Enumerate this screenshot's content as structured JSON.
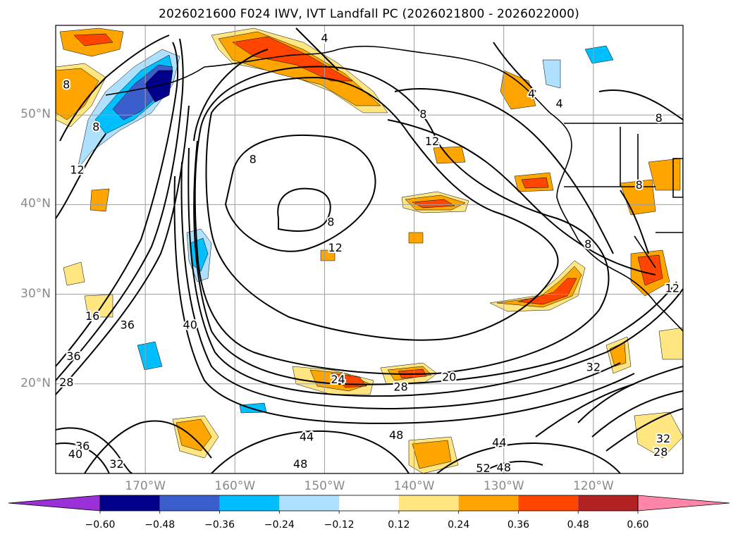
{
  "title": "2026021600 F024 IWV, IVT Landfall PC (2026021800 - 2026022000)",
  "map": {
    "lat_labels": [
      "50°N",
      "40°N",
      "30°N",
      "20°N"
    ],
    "lat_values": [
      50,
      40,
      30,
      20
    ],
    "lon_labels": [
      "170°W",
      "160°W",
      "150°W",
      "140°W",
      "130°W",
      "120°W"
    ],
    "lon_values": [
      -170,
      -160,
      -150,
      -140,
      -130,
      -120
    ],
    "extent": {
      "lon_min": -180,
      "lon_max": -110,
      "lat_min": 10,
      "lat_max": 60
    },
    "contour_labels": [
      {
        "text": "8",
        "lon": -178.8,
        "lat": 53.3
      },
      {
        "text": "8",
        "lon": -175.5,
        "lat": 48.6
      },
      {
        "text": "12",
        "lon": -177.6,
        "lat": 43.8
      },
      {
        "text": "16",
        "lon": -175.9,
        "lat": 27.5
      },
      {
        "text": "36",
        "lon": -178.0,
        "lat": 23.0
      },
      {
        "text": "28",
        "lon": -178.8,
        "lat": 20.1
      },
      {
        "text": "36",
        "lon": -172.0,
        "lat": 26.5
      },
      {
        "text": "40",
        "lon": -165.0,
        "lat": 26.5
      },
      {
        "text": "8",
        "lon": -158.0,
        "lat": 45.0
      },
      {
        "text": "8",
        "lon": -149.3,
        "lat": 38.0
      },
      {
        "text": "12",
        "lon": -148.8,
        "lat": 35.1
      },
      {
        "text": "12",
        "lon": -138.0,
        "lat": 47.0
      },
      {
        "text": "8",
        "lon": -139.0,
        "lat": 50.0
      },
      {
        "text": "4",
        "lon": -150.0,
        "lat": 58.5
      },
      {
        "text": "4",
        "lon": -126.9,
        "lat": 52.3
      },
      {
        "text": "4",
        "lon": -123.8,
        "lat": 51.2
      },
      {
        "text": "8",
        "lon": -112.7,
        "lat": 49.6
      },
      {
        "text": "8",
        "lon": -114.9,
        "lat": 42.1
      },
      {
        "text": "8",
        "lon": -120.6,
        "lat": 35.5
      },
      {
        "text": "12",
        "lon": -111.2,
        "lat": 30.6
      },
      {
        "text": "24",
        "lon": -148.5,
        "lat": 20.4
      },
      {
        "text": "28",
        "lon": -141.5,
        "lat": 19.6
      },
      {
        "text": "20",
        "lon": -136.1,
        "lat": 20.7
      },
      {
        "text": "32",
        "lon": -120.0,
        "lat": 21.8
      },
      {
        "text": "44",
        "lon": -152.0,
        "lat": 14.0
      },
      {
        "text": "48",
        "lon": -142.0,
        "lat": 14.2
      },
      {
        "text": "44",
        "lon": -130.5,
        "lat": 13.4
      },
      {
        "text": "36",
        "lon": -177.0,
        "lat": 13.0
      },
      {
        "text": "40",
        "lon": -177.8,
        "lat": 12.1
      },
      {
        "text": "32",
        "lon": -173.2,
        "lat": 11.0
      },
      {
        "text": "48",
        "lon": -152.7,
        "lat": 11.0
      },
      {
        "text": "52",
        "lon": -132.3,
        "lat": 10.5
      },
      {
        "text": "48",
        "lon": -130.0,
        "lat": 10.6
      },
      {
        "text": "28",
        "lon": -112.5,
        "lat": 12.3
      },
      {
        "text": "32",
        "lon": -112.2,
        "lat": 13.8
      }
    ]
  },
  "colorbar": {
    "ticks": [
      "−0.60",
      "−0.48",
      "−0.36",
      "−0.24",
      "−0.12",
      "0.12",
      "0.24",
      "0.36",
      "0.48",
      "0.60"
    ],
    "levels": [
      -0.6,
      -0.48,
      -0.36,
      -0.24,
      -0.12,
      0.12,
      0.24,
      0.36,
      0.48,
      0.6
    ],
    "colors": [
      "#9b30d8",
      "#00008b",
      "#3a5fcd",
      "#00bfff",
      "#aee0ff",
      "#ffffff",
      "#ffe680",
      "#ffa500",
      "#ff4500",
      "#b22222",
      "#ff86a8"
    ],
    "extend": "both"
  },
  "fill_colors": {
    "neg_light": "#aee0ff",
    "neg_mid": "#00bfff",
    "neg_strong": "#3a5fcd",
    "neg_max": "#00008b",
    "pos_light": "#ffe680",
    "pos_mid": "#ffa500",
    "pos_strong": "#ff4500"
  }
}
